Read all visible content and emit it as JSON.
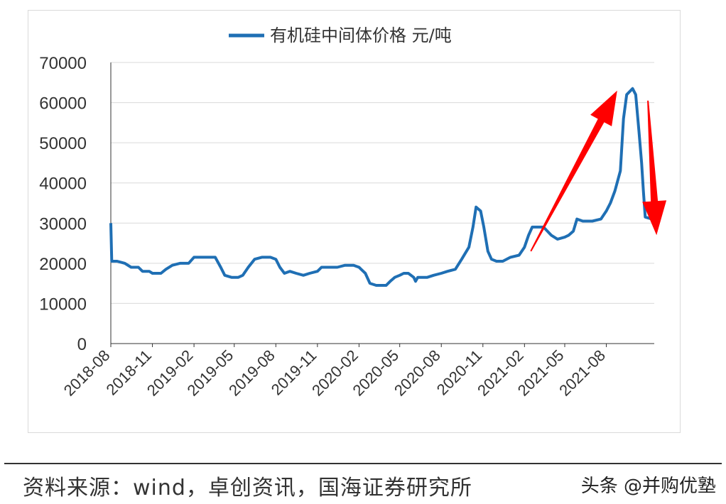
{
  "chart_data": {
    "type": "line",
    "series": [
      {
        "name": "有机硅中间体价格 元/吨",
        "points": [
          [
            "2018-08-01",
            30000
          ],
          [
            "2018-08-03",
            20500
          ],
          [
            "2018-08-15",
            20500
          ],
          [
            "2018-09-01",
            20000
          ],
          [
            "2018-09-15",
            19000
          ],
          [
            "2018-10-01",
            19000
          ],
          [
            "2018-10-10",
            18000
          ],
          [
            "2018-10-25",
            18000
          ],
          [
            "2018-11-01",
            17500
          ],
          [
            "2018-11-20",
            17500
          ],
          [
            "2018-12-01",
            18500
          ],
          [
            "2018-12-15",
            19500
          ],
          [
            "2019-01-01",
            20000
          ],
          [
            "2019-01-20",
            20000
          ],
          [
            "2019-02-01",
            21500
          ],
          [
            "2019-02-15",
            21500
          ],
          [
            "2019-03-01",
            21500
          ],
          [
            "2019-03-20",
            21500
          ],
          [
            "2019-04-01",
            19000
          ],
          [
            "2019-04-10",
            17000
          ],
          [
            "2019-04-25",
            16500
          ],
          [
            "2019-05-10",
            16500
          ],
          [
            "2019-05-20",
            17000
          ],
          [
            "2019-06-01",
            19000
          ],
          [
            "2019-06-15",
            21000
          ],
          [
            "2019-07-01",
            21500
          ],
          [
            "2019-07-20",
            21500
          ],
          [
            "2019-08-01",
            21000
          ],
          [
            "2019-08-10",
            19000
          ],
          [
            "2019-08-20",
            17500
          ],
          [
            "2019-09-01",
            18000
          ],
          [
            "2019-09-15",
            17500
          ],
          [
            "2019-10-01",
            17000
          ],
          [
            "2019-10-15",
            17500
          ],
          [
            "2019-11-01",
            18000
          ],
          [
            "2019-11-10",
            19000
          ],
          [
            "2019-12-01",
            19000
          ],
          [
            "2019-12-15",
            19000
          ],
          [
            "2020-01-01",
            19500
          ],
          [
            "2020-01-20",
            19500
          ],
          [
            "2020-02-01",
            19000
          ],
          [
            "2020-02-15",
            17500
          ],
          [
            "2020-02-25",
            15000
          ],
          [
            "2020-03-10",
            14500
          ],
          [
            "2020-04-01",
            14500
          ],
          [
            "2020-04-10",
            15500
          ],
          [
            "2020-04-20",
            16500
          ],
          [
            "2020-05-01",
            17000
          ],
          [
            "2020-05-10",
            17500
          ],
          [
            "2020-05-20",
            17500
          ],
          [
            "2020-06-01",
            16500
          ],
          [
            "2020-06-05",
            15500
          ],
          [
            "2020-06-10",
            16500
          ],
          [
            "2020-06-20",
            16500
          ],
          [
            "2020-07-01",
            16500
          ],
          [
            "2020-07-15",
            17000
          ],
          [
            "2020-08-01",
            17500
          ],
          [
            "2020-08-15",
            18000
          ],
          [
            "2020-09-01",
            18500
          ],
          [
            "2020-09-15",
            21000
          ],
          [
            "2020-10-01",
            24000
          ],
          [
            "2020-10-10",
            29000
          ],
          [
            "2020-10-17",
            34000
          ],
          [
            "2020-10-27",
            33000
          ],
          [
            "2020-11-03",
            29000
          ],
          [
            "2020-11-12",
            23000
          ],
          [
            "2020-11-20",
            21000
          ],
          [
            "2020-12-01",
            20500
          ],
          [
            "2020-12-15",
            20500
          ],
          [
            "2021-01-01",
            21500
          ],
          [
            "2021-01-20",
            22000
          ],
          [
            "2021-02-01",
            24000
          ],
          [
            "2021-02-10",
            27000
          ],
          [
            "2021-02-18",
            29000
          ],
          [
            "2021-03-15",
            29000
          ],
          [
            "2021-04-01",
            27000
          ],
          [
            "2021-04-15",
            26000
          ],
          [
            "2021-05-01",
            26500
          ],
          [
            "2021-05-10",
            27000
          ],
          [
            "2021-05-20",
            28000
          ],
          [
            "2021-05-28",
            31000
          ],
          [
            "2021-06-10",
            30500
          ],
          [
            "2021-07-01",
            30500
          ],
          [
            "2021-07-20",
            31000
          ],
          [
            "2021-08-01",
            33000
          ],
          [
            "2021-08-10",
            35000
          ],
          [
            "2021-08-20",
            38000
          ],
          [
            "2021-09-01",
            43000
          ],
          [
            "2021-09-08",
            56000
          ],
          [
            "2021-09-15",
            62000
          ],
          [
            "2021-09-28",
            63500
          ],
          [
            "2021-10-05",
            62000
          ],
          [
            "2021-10-12",
            53000
          ],
          [
            "2021-10-18",
            45000
          ],
          [
            "2021-10-22",
            38000
          ],
          [
            "2021-10-26",
            31500
          ],
          [
            "2021-11-10",
            31000
          ]
        ]
      }
    ],
    "x_ticks": [
      "2018-08",
      "2018-11",
      "2019-02",
      "2019-05",
      "2019-08",
      "2019-11",
      "2020-02",
      "2020-05",
      "2020-08",
      "2020-11",
      "2021-02",
      "2021-05",
      "2021-08"
    ],
    "y_ticks": [
      0,
      10000,
      20000,
      30000,
      40000,
      50000,
      60000,
      70000
    ],
    "ylim": [
      0,
      70000
    ],
    "xlim": [
      "2018-08-01",
      "2021-11-15"
    ],
    "grid": true,
    "legend_position": "top-center",
    "annotations": [
      {
        "type": "arrow",
        "direction": "up",
        "color": "#ff0000"
      },
      {
        "type": "arrow",
        "direction": "down",
        "color": "#ff0000"
      }
    ],
    "line_color": "#1f6fb4"
  },
  "footer": {
    "source": "资料来源：wind，卓创资讯，国海证券研究所",
    "watermark": "头条 @并购优塾"
  }
}
